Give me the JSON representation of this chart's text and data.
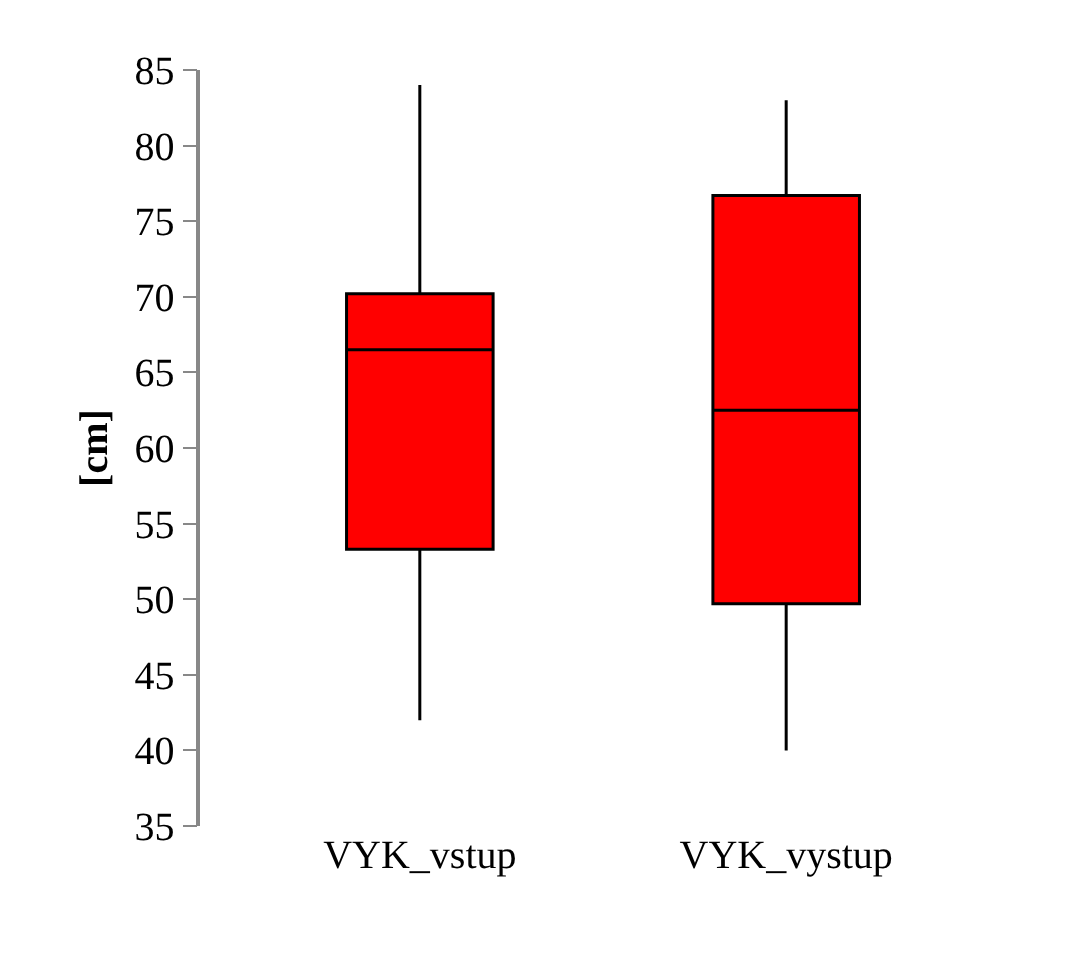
{
  "chart_data": {
    "type": "box",
    "ylabel": "[cm]",
    "categories": [
      "VYK_vstup",
      "VYK_vystup"
    ],
    "color": "#ff0000",
    "boxes": [
      {
        "low": 42,
        "q1": 53.3,
        "median": 66.5,
        "q3": 70.2,
        "high": 84
      },
      {
        "low": 40,
        "q1": 49.7,
        "median": 62.5,
        "q3": 76.7,
        "high": 83
      }
    ],
    "ylim": [
      35,
      85
    ],
    "yticks": [
      35,
      40,
      45,
      50,
      55,
      60,
      65,
      70,
      75,
      80,
      85
    ],
    "grid": false
  }
}
